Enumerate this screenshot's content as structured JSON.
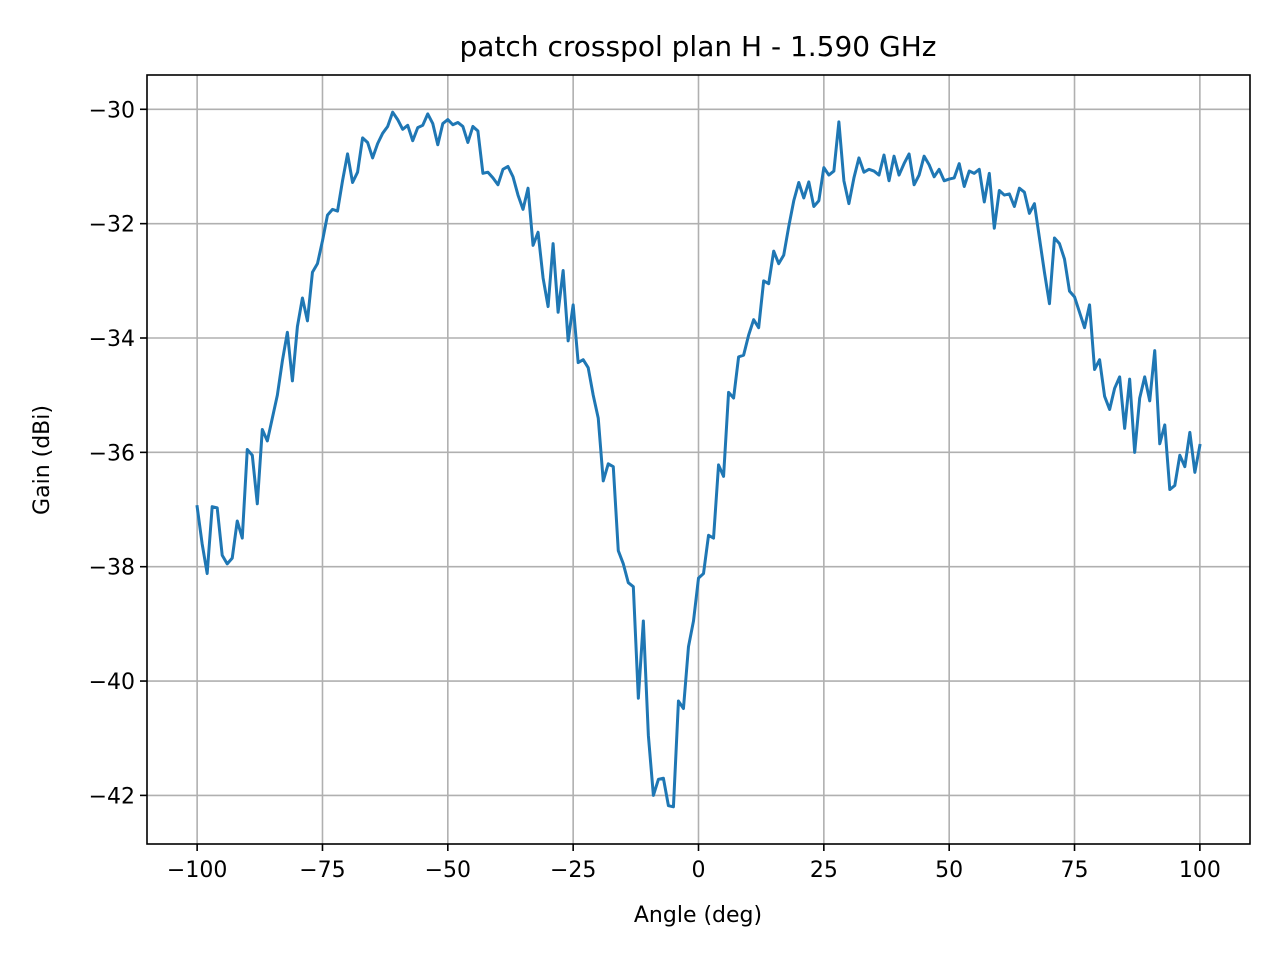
{
  "chart_data": {
    "type": "line",
    "title": "patch crosspol plan H - 1.590 GHz",
    "xlabel": "Angle (deg)",
    "ylabel": "Gain (dBi)",
    "xlim": [
      -110,
      110
    ],
    "ylim": [
      -42.85,
      -29.4
    ],
    "xticks": [
      -100,
      -75,
      -50,
      -25,
      0,
      25,
      50,
      75,
      100
    ],
    "xtick_labels": [
      "−100",
      "−75",
      "−50",
      "−25",
      "0",
      "25",
      "50",
      "75",
      "100"
    ],
    "yticks": [
      -30,
      -32,
      -34,
      -36,
      -38,
      -40,
      -42
    ],
    "ytick_labels": [
      "−30",
      "−32",
      "−34",
      "−36",
      "−38",
      "−40",
      "−42"
    ],
    "grid": true,
    "series": [
      {
        "color": "#1f77b4",
        "x": [
          -100,
          -99,
          -98,
          -97,
          -96,
          -95,
          -94,
          -93,
          -92,
          -91,
          -90,
          -89,
          -88,
          -87,
          -86,
          -85,
          -84,
          -83,
          -82,
          -81,
          -80,
          -79,
          -78,
          -77,
          -76,
          -75,
          -74,
          -73,
          -72,
          -71,
          -70,
          -69,
          -68,
          -67,
          -66,
          -65,
          -64,
          -63,
          -62,
          -61,
          -60,
          -59,
          -58,
          -57,
          -56,
          -55,
          -54,
          -53,
          -52,
          -51,
          -50,
          -49,
          -48,
          -47,
          -46,
          -45,
          -44,
          -43,
          -42,
          -41,
          -40,
          -39,
          -38,
          -37,
          -36,
          -35,
          -34,
          -33,
          -32,
          -31,
          -30,
          -29,
          -28,
          -27,
          -26,
          -25,
          -24,
          -23,
          -22,
          -21,
          -20,
          -19,
          -18,
          -17,
          -16,
          -15,
          -14,
          -13,
          -12,
          -11,
          -10,
          -9,
          -8,
          -7,
          -6,
          -5,
          -4,
          -3,
          -2,
          -1,
          0,
          1,
          2,
          3,
          4,
          5,
          6,
          7,
          8,
          9,
          10,
          11,
          12,
          13,
          14,
          15,
          16,
          17,
          18,
          19,
          20,
          21,
          22,
          23,
          24,
          25,
          26,
          27,
          28,
          29,
          30,
          31,
          32,
          33,
          34,
          35,
          36,
          37,
          38,
          39,
          40,
          41,
          42,
          43,
          44,
          45,
          46,
          47,
          48,
          49,
          50,
          51,
          52,
          53,
          54,
          55,
          56,
          57,
          58,
          59,
          60,
          61,
          62,
          63,
          64,
          65,
          66,
          67,
          68,
          69,
          70,
          71,
          72,
          73,
          74,
          75,
          76,
          77,
          78,
          79,
          80,
          81,
          82,
          83,
          84,
          85,
          86,
          87,
          88,
          89,
          90,
          91,
          92,
          93,
          94,
          95,
          96,
          97,
          98,
          99,
          100
        ],
        "y": [
          -36.95,
          -37.6,
          -38.12,
          -36.95,
          -36.97,
          -37.8,
          -37.95,
          -37.85,
          -37.2,
          -37.5,
          -35.95,
          -36.05,
          -36.9,
          -35.6,
          -35.8,
          -35.4,
          -35.0,
          -34.4,
          -33.9,
          -34.75,
          -33.8,
          -33.3,
          -33.7,
          -32.85,
          -32.7,
          -32.3,
          -31.85,
          -31.75,
          -31.78,
          -31.25,
          -30.78,
          -31.28,
          -31.1,
          -30.5,
          -30.58,
          -30.85,
          -30.6,
          -30.42,
          -30.3,
          -30.05,
          -30.18,
          -30.35,
          -30.28,
          -30.55,
          -30.32,
          -30.28,
          -30.08,
          -30.25,
          -30.62,
          -30.25,
          -30.18,
          -30.27,
          -30.23,
          -30.3,
          -30.58,
          -30.3,
          -30.38,
          -31.12,
          -31.1,
          -31.2,
          -31.32,
          -31.05,
          -31.0,
          -31.18,
          -31.5,
          -31.75,
          -31.38,
          -32.38,
          -32.15,
          -32.95,
          -33.45,
          -32.35,
          -33.55,
          -32.82,
          -34.05,
          -33.42,
          -34.43,
          -34.38,
          -34.52,
          -35.0,
          -35.4,
          -36.5,
          -36.2,
          -36.25,
          -37.72,
          -37.95,
          -38.28,
          -38.35,
          -40.3,
          -38.95,
          -40.95,
          -42.0,
          -41.72,
          -41.7,
          -42.18,
          -42.2,
          -40.35,
          -40.48,
          -39.4,
          -38.95,
          -38.2,
          -38.12,
          -37.45,
          -37.5,
          -36.22,
          -36.42,
          -34.95,
          -35.05,
          -34.33,
          -34.3,
          -33.95,
          -33.68,
          -33.82,
          -33.0,
          -33.05,
          -32.48,
          -32.7,
          -32.55,
          -32.05,
          -31.6,
          -31.28,
          -31.55,
          -31.27,
          -31.7,
          -31.6,
          -31.02,
          -31.15,
          -31.08,
          -30.22,
          -31.25,
          -31.65,
          -31.2,
          -30.85,
          -31.1,
          -31.05,
          -31.08,
          -31.15,
          -30.8,
          -31.25,
          -30.82,
          -31.15,
          -30.95,
          -30.78,
          -31.32,
          -31.15,
          -30.82,
          -30.97,
          -31.18,
          -31.05,
          -31.25,
          -31.22,
          -31.2,
          -30.95,
          -31.35,
          -31.08,
          -31.12,
          -31.05,
          -31.62,
          -31.12,
          -32.08,
          -31.42,
          -31.5,
          -31.48,
          -31.7,
          -31.38,
          -31.45,
          -31.82,
          -31.65,
          -32.25,
          -32.85,
          -33.4,
          -32.25,
          -32.35,
          -32.62,
          -33.18,
          -33.28,
          -33.55,
          -33.82,
          -33.42,
          -34.55,
          -34.38,
          -35.02,
          -35.25,
          -34.88,
          -34.68,
          -35.58,
          -34.72,
          -36.0,
          -35.05,
          -34.68,
          -35.1,
          -34.22,
          -35.85,
          -35.52,
          -36.65,
          -36.58,
          -36.05,
          -36.25,
          -35.65,
          -36.35,
          -35.88
        ]
      }
    ]
  }
}
